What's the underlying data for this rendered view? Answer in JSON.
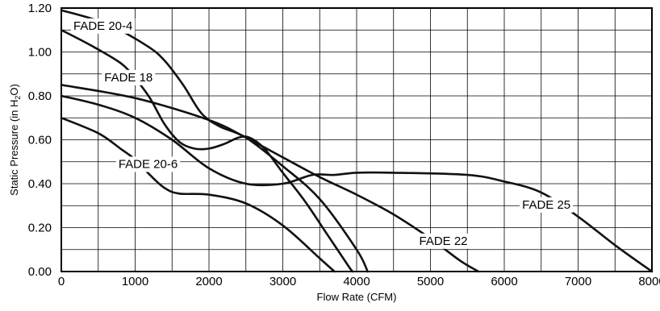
{
  "chart_data": {
    "type": "line",
    "title": "",
    "xlabel": "Flow Rate (CFM)",
    "ylabel": "Static Pressure (in H2O)",
    "ylabel_display": "Static Pressure (in H",
    "ylabel_sub": "2",
    "ylabel_tail": "O)",
    "xlim": [
      0,
      8000
    ],
    "ylim": [
      0,
      1.2
    ],
    "x_ticks": [
      0,
      1000,
      2000,
      3000,
      4000,
      5000,
      6000,
      7000,
      8000
    ],
    "x_tick_labels": [
      "0",
      "1000",
      "2000",
      "3000",
      "4000",
      "5000",
      "6000",
      "7000",
      "8000"
    ],
    "y_ticks": [
      0,
      0.2,
      0.4,
      0.6,
      0.8,
      1.0,
      1.2
    ],
    "y_tick_labels": [
      "0.00",
      "0.20",
      "0.40",
      "0.60",
      "0.80",
      "1.00",
      "1.20"
    ],
    "x_minor_step": 500,
    "y_minor_step": 0.1,
    "grid": true,
    "legend": "none",
    "series": [
      {
        "name": "FADE 20-4",
        "label_at": [
          565,
          1.12
        ],
        "points": [
          [
            0,
            1.19
          ],
          [
            600,
            1.13
          ],
          [
            1150,
            1.03
          ],
          [
            1400,
            0.96
          ],
          [
            1650,
            0.85
          ],
          [
            1900,
            0.72
          ],
          [
            2150,
            0.66
          ],
          [
            2500,
            0.61
          ],
          [
            3000,
            0.48
          ],
          [
            3500,
            0.33
          ],
          [
            4000,
            0.1
          ],
          [
            4150,
            0.0
          ]
        ]
      },
      {
        "name": "FADE 18",
        "label_at": [
          910,
          0.885
        ],
        "points": [
          [
            0,
            1.1
          ],
          [
            400,
            1.03
          ],
          [
            800,
            0.95
          ],
          [
            1000,
            0.88
          ],
          [
            1200,
            0.79
          ],
          [
            1400,
            0.67
          ],
          [
            1600,
            0.59
          ],
          [
            1800,
            0.56
          ],
          [
            2000,
            0.56
          ],
          [
            2200,
            0.58
          ],
          [
            2400,
            0.61
          ],
          [
            2550,
            0.61
          ],
          [
            2750,
            0.56
          ],
          [
            3000,
            0.45
          ],
          [
            3300,
            0.32
          ],
          [
            3600,
            0.17
          ],
          [
            3900,
            0.02
          ],
          [
            3950,
            0.0
          ]
        ]
      },
      {
        "name": "FADE 20-6",
        "label_at": [
          1175,
          0.49
        ],
        "points": [
          [
            0,
            0.7
          ],
          [
            500,
            0.63
          ],
          [
            800,
            0.56
          ],
          [
            1000,
            0.51
          ],
          [
            1200,
            0.44
          ],
          [
            1400,
            0.38
          ],
          [
            1600,
            0.355
          ],
          [
            2000,
            0.35
          ],
          [
            2500,
            0.31
          ],
          [
            3000,
            0.21
          ],
          [
            3500,
            0.06
          ],
          [
            3700,
            0.0
          ]
        ]
      },
      {
        "name": "FADE 25",
        "label_at": [
          6570,
          0.305
        ],
        "points": [
          [
            0,
            0.8
          ],
          [
            500,
            0.76
          ],
          [
            1000,
            0.7
          ],
          [
            1500,
            0.6
          ],
          [
            2000,
            0.47
          ],
          [
            2500,
            0.4
          ],
          [
            3000,
            0.4
          ],
          [
            3400,
            0.44
          ],
          [
            3700,
            0.44
          ],
          [
            4000,
            0.45
          ],
          [
            4500,
            0.45
          ],
          [
            5500,
            0.44
          ],
          [
            6000,
            0.41
          ],
          [
            6500,
            0.36
          ],
          [
            7000,
            0.25
          ],
          [
            7500,
            0.12
          ],
          [
            8000,
            0.0
          ]
        ]
      },
      {
        "name": "FADE 22",
        "label_at": [
          5175,
          0.14
        ],
        "points": [
          [
            0,
            0.85
          ],
          [
            1000,
            0.79
          ],
          [
            2000,
            0.69
          ],
          [
            2500,
            0.61
          ],
          [
            3000,
            0.52
          ],
          [
            3500,
            0.43
          ],
          [
            4000,
            0.35
          ],
          [
            4500,
            0.26
          ],
          [
            5000,
            0.15
          ],
          [
            5400,
            0.05
          ],
          [
            5650,
            0.0
          ]
        ]
      }
    ]
  }
}
